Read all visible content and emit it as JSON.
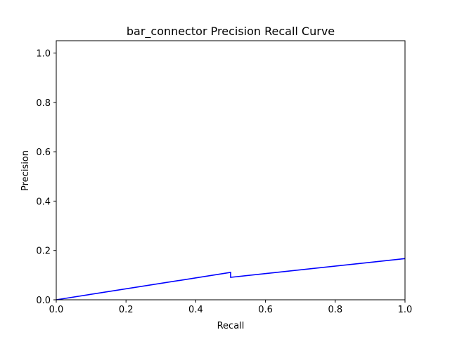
{
  "chart_data": {
    "type": "line",
    "title": "bar_connector Precision Recall Curve",
    "xlabel": "Recall",
    "ylabel": "Precision",
    "xlim": [
      0.0,
      1.0
    ],
    "ylim": [
      0.0,
      1.05
    ],
    "xticks": [
      "0.0",
      "0.2",
      "0.4",
      "0.6",
      "0.8",
      "1.0"
    ],
    "yticks": [
      "0.0",
      "0.2",
      "0.4",
      "0.6",
      "0.8",
      "1.0"
    ],
    "grid": false,
    "legend": "none",
    "series": [
      {
        "color": "#0000ff",
        "points": [
          {
            "x": 0.0,
            "y": 0.0
          },
          {
            "x": 0.5,
            "y": 0.111
          },
          {
            "x": 0.5,
            "y": 0.091
          },
          {
            "x": 1.0,
            "y": 0.167
          }
        ]
      }
    ]
  }
}
